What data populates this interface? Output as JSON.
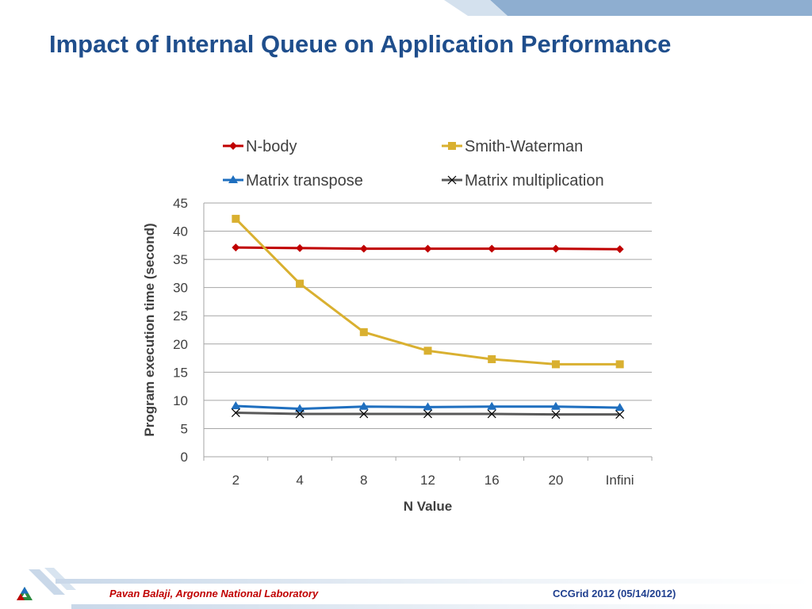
{
  "slide": {
    "title": "Impact of Internal Queue on Application Performance",
    "footer_left": "Pavan Balaji, Argonne National Laboratory",
    "footer_right": "CCGrid 2012 (05/14/2012)"
  },
  "colors": {
    "title": "#1f4e8c",
    "footer_left": "#c00000",
    "footer_right": "#1f3f8f",
    "banner": "#8eaed0"
  },
  "chart_data": {
    "type": "line",
    "title": "",
    "xlabel": "N Value",
    "ylabel": "Program execution time (second)",
    "categories": [
      "2",
      "4",
      "8",
      "12",
      "16",
      "20",
      "Infini"
    ],
    "ylim": [
      0,
      45
    ],
    "yticks": [
      0,
      5,
      10,
      15,
      20,
      25,
      30,
      35,
      40,
      45
    ],
    "grid": true,
    "legend_position": "top",
    "series": [
      {
        "name": "N-body",
        "color": "#c00000",
        "marker": "diamond",
        "values": [
          37.1,
          37.0,
          36.9,
          36.9,
          36.9,
          36.9,
          36.8
        ]
      },
      {
        "name": "Smith-Waterman",
        "color": "#d9b030",
        "marker": "square",
        "values": [
          42.2,
          30.7,
          22.1,
          18.8,
          17.3,
          16.4,
          16.4
        ]
      },
      {
        "name": "Matrix transpose",
        "color": "#1f6fbf",
        "marker": "triangle",
        "values": [
          9.0,
          8.5,
          8.9,
          8.8,
          8.9,
          8.9,
          8.7
        ]
      },
      {
        "name": "Matrix multiplication",
        "color": "#595959",
        "marker": "x",
        "values": [
          7.8,
          7.6,
          7.6,
          7.6,
          7.6,
          7.5,
          7.5
        ]
      }
    ]
  }
}
